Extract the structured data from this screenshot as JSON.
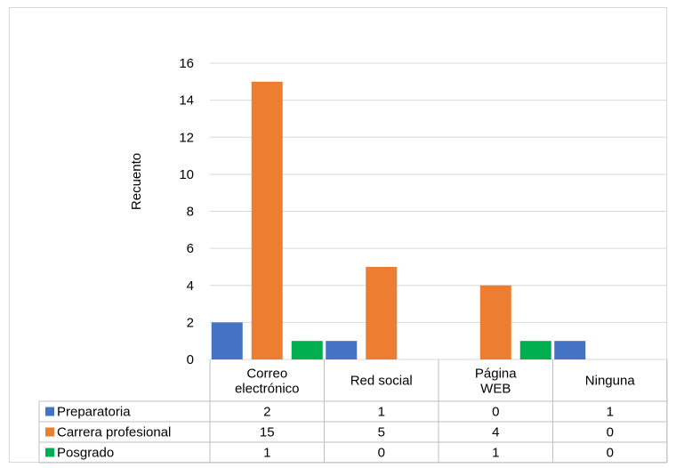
{
  "chart_data": {
    "type": "bar",
    "title": "",
    "xlabel": "",
    "ylabel": "Recuento",
    "ylim": [
      0,
      16
    ],
    "yticks": [
      0,
      2,
      4,
      6,
      8,
      10,
      12,
      14,
      16
    ],
    "grid": true,
    "legend": "data-table",
    "categories": [
      [
        "Correo",
        "electrónico"
      ],
      [
        "Red social"
      ],
      [
        "Página",
        "WEB"
      ],
      [
        "Ninguna"
      ]
    ],
    "series": [
      {
        "name": "Preparatoria",
        "color": "#4472c4",
        "values": [
          2,
          1,
          0,
          1
        ]
      },
      {
        "name": "Carrera profesional",
        "color": "#ed7d31",
        "values": [
          15,
          5,
          4,
          0
        ]
      },
      {
        "name": "Posgrado",
        "color": "#00b050",
        "values": [
          1,
          0,
          1,
          0
        ]
      }
    ]
  }
}
